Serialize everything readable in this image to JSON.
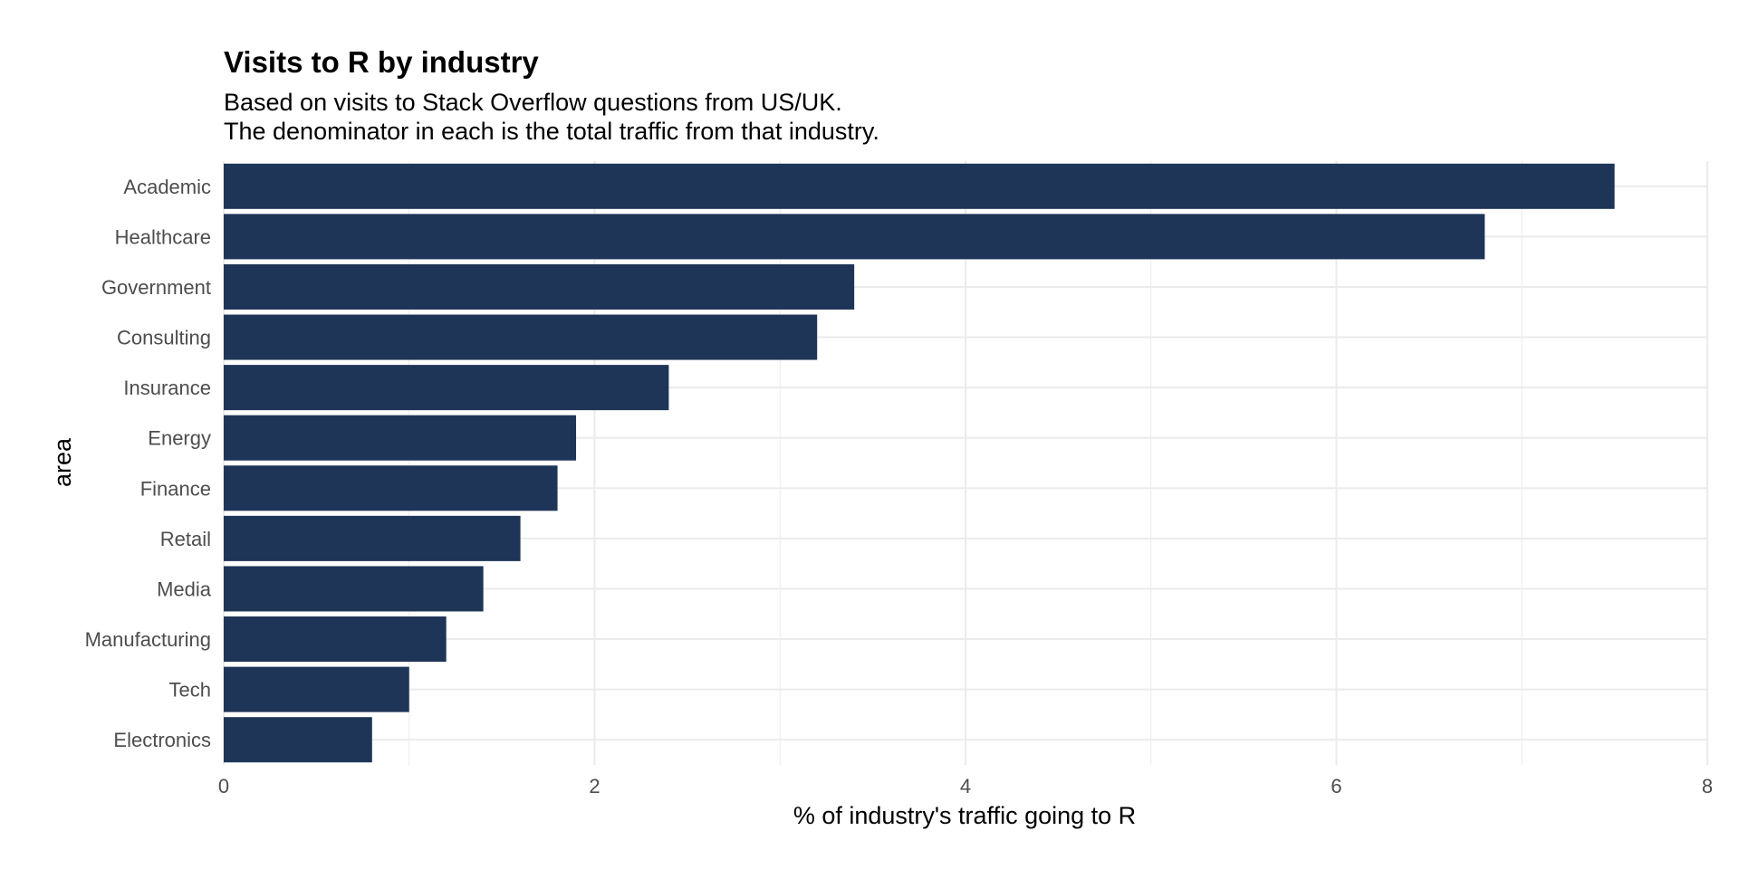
{
  "chart_data": {
    "type": "bar",
    "orientation": "horizontal",
    "title": "Visits to R by industry",
    "subtitle": [
      "Based on visits to Stack Overflow questions from US/UK.",
      "The denominator in each is the total traffic from that industry."
    ],
    "xlabel": "% of industry's traffic going to R",
    "ylabel": "area",
    "categories": [
      "Academic",
      "Healthcare",
      "Government",
      "Consulting",
      "Insurance",
      "Energy",
      "Finance",
      "Retail",
      "Media",
      "Manufacturing",
      "Tech",
      "Electronics"
    ],
    "values": [
      7.5,
      6.8,
      3.4,
      3.2,
      2.4,
      1.9,
      1.8,
      1.6,
      1.4,
      1.2,
      1.0,
      0.8
    ],
    "xlim": [
      0,
      8
    ],
    "xticks": [
      0,
      2,
      4,
      6,
      8
    ],
    "grid": true,
    "bar_color": "#1e3557",
    "grid_color": "#ebebeb"
  }
}
